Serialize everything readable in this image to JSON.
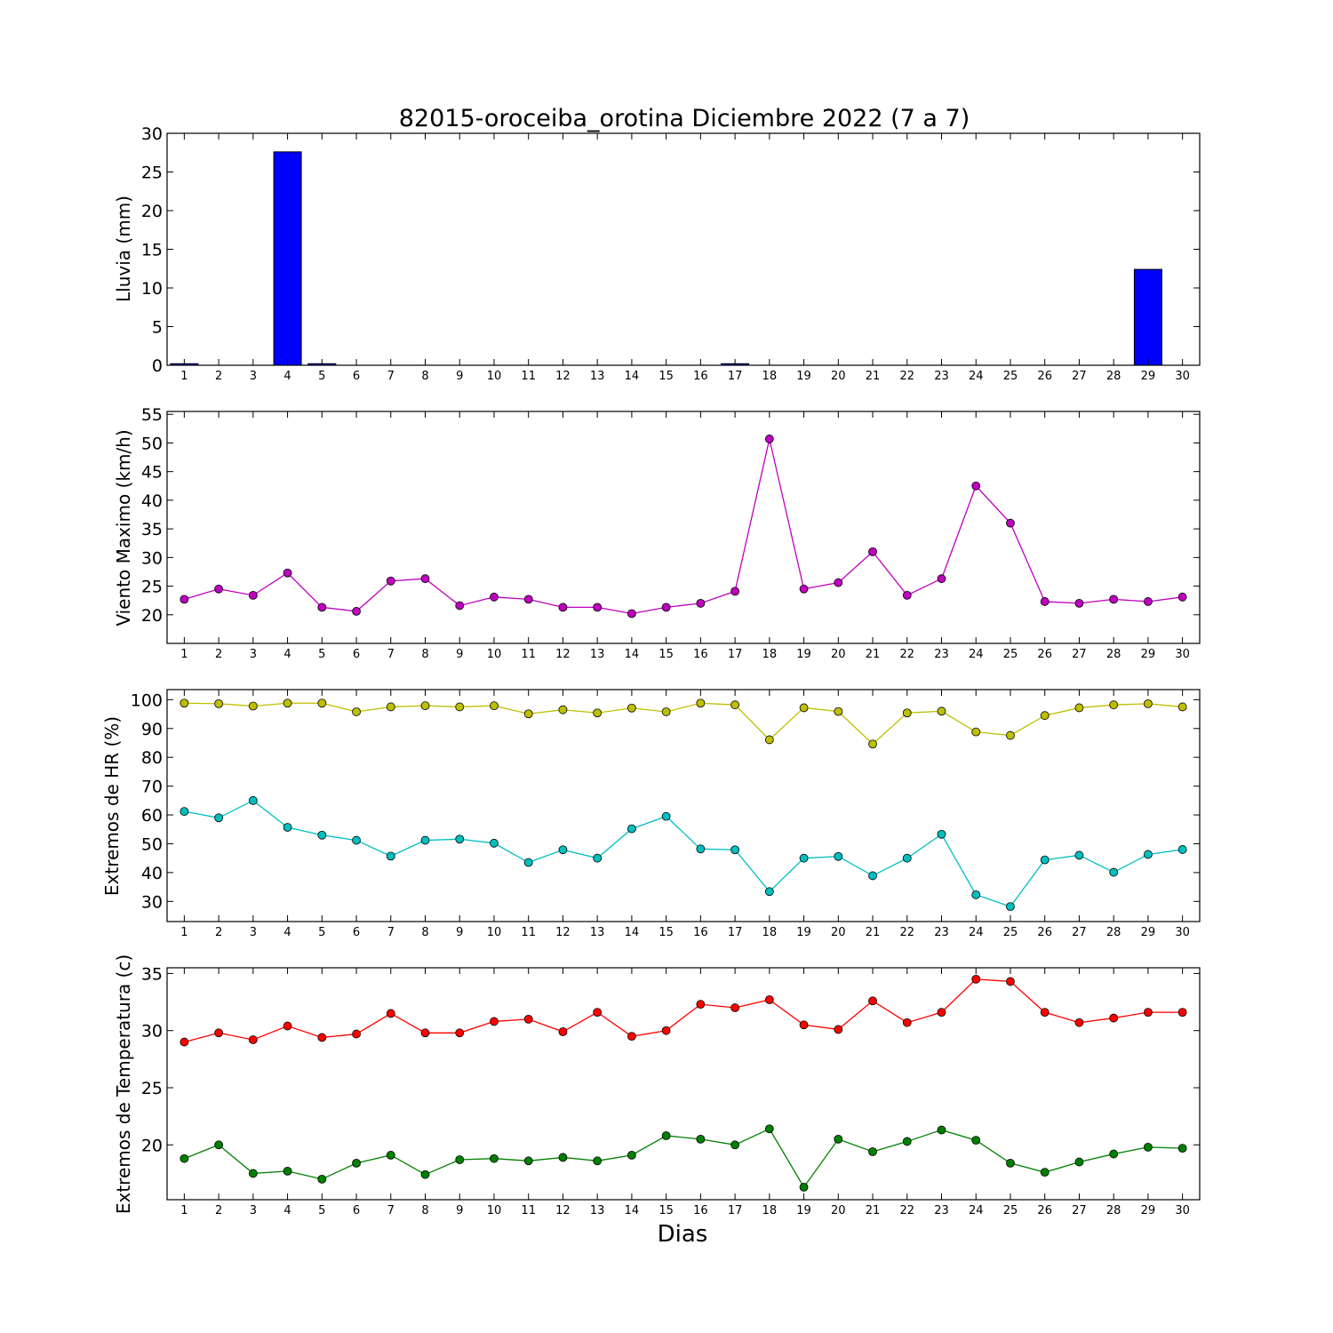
{
  "title": "82015-oroceiba_orotina Diciembre 2022  (7 a 7)",
  "xlabel": "Dias",
  "chart_data": [
    {
      "type": "bar",
      "ylabel": "Lluvia (mm)",
      "ylim": [
        0,
        30
      ],
      "yticks": [
        0,
        5,
        10,
        15,
        20,
        25,
        30
      ],
      "categories": [
        "1",
        "2",
        "3",
        "4",
        "5",
        "6",
        "7",
        "8",
        "9",
        "10",
        "11",
        "12",
        "13",
        "14",
        "15",
        "16",
        "17",
        "18",
        "19",
        "20",
        "21",
        "22",
        "23",
        "24",
        "25",
        "26",
        "27",
        "28",
        "29",
        "30"
      ],
      "series": [
        {
          "color": "#0000ff",
          "values": [
            0.2,
            0,
            0,
            27.6,
            0.2,
            0,
            0,
            0,
            0,
            0,
            0,
            0,
            0,
            0,
            0,
            0,
            0.2,
            0,
            0,
            0,
            0,
            0,
            0,
            0,
            0,
            0,
            0,
            0,
            12.4,
            0
          ]
        }
      ],
      "grid": false
    },
    {
      "type": "line",
      "ylabel": "Viento Maximo (km/h)",
      "ylim": [
        15,
        55.5
      ],
      "yticks": [
        20,
        25,
        30,
        35,
        40,
        45,
        50,
        55
      ],
      "categories": [
        "1",
        "2",
        "3",
        "4",
        "5",
        "6",
        "7",
        "8",
        "9",
        "10",
        "11",
        "12",
        "13",
        "14",
        "15",
        "16",
        "17",
        "18",
        "19",
        "20",
        "21",
        "22",
        "23",
        "24",
        "25",
        "26",
        "27",
        "28",
        "29",
        "30"
      ],
      "series": [
        {
          "color": "#bf00bf",
          "values": [
            22.7,
            24.5,
            23.4,
            27.3,
            21.3,
            20.6,
            25.9,
            26.3,
            21.6,
            23.1,
            22.7,
            21.3,
            21.3,
            20.2,
            21.3,
            22.0,
            24.1,
            50.7,
            24.5,
            25.6,
            31.0,
            23.4,
            26.3,
            42.5,
            36.0,
            22.3,
            22.0,
            22.7,
            22.3,
            23.1
          ]
        }
      ],
      "grid": false
    },
    {
      "type": "line",
      "ylabel": "Extremos de HR (%)",
      "ylim": [
        23,
        103.5
      ],
      "yticks": [
        30,
        40,
        50,
        60,
        70,
        80,
        90,
        100
      ],
      "categories": [
        "1",
        "2",
        "3",
        "4",
        "5",
        "6",
        "7",
        "8",
        "9",
        "10",
        "11",
        "12",
        "13",
        "14",
        "15",
        "16",
        "17",
        "18",
        "19",
        "20",
        "21",
        "22",
        "23",
        "24",
        "25",
        "26",
        "27",
        "28",
        "29",
        "30"
      ],
      "series": [
        {
          "color": "#bfbf00",
          "values": [
            98.8,
            98.6,
            97.8,
            98.8,
            98.8,
            95.8,
            97.5,
            97.9,
            97.5,
            97.9,
            95.1,
            96.5,
            95.4,
            97.1,
            95.8,
            98.8,
            98.2,
            86.1,
            97.2,
            95.9,
            84.6,
            95.4,
            96.0,
            88.8,
            87.6,
            94.5,
            97.2,
            98.2,
            98.6,
            97.5
          ]
        },
        {
          "color": "#00bfbf",
          "values": [
            61.2,
            59.0,
            65.0,
            55.7,
            53.0,
            51.2,
            45.7,
            51.2,
            51.6,
            50.2,
            43.5,
            47.9,
            45.0,
            55.2,
            59.5,
            48.2,
            47.9,
            33.4,
            45.0,
            45.6,
            38.9,
            45.0,
            53.3,
            32.3,
            28.2,
            44.4,
            46.0,
            40.1,
            46.3,
            48.0
          ]
        }
      ],
      "grid": false
    },
    {
      "type": "line",
      "ylabel": "Extremos de Temperatura (c)",
      "ylim": [
        15.2,
        35.5
      ],
      "yticks": [
        20,
        25,
        30,
        35
      ],
      "categories": [
        "1",
        "2",
        "3",
        "4",
        "5",
        "6",
        "7",
        "8",
        "9",
        "10",
        "11",
        "12",
        "13",
        "14",
        "15",
        "16",
        "17",
        "18",
        "19",
        "20",
        "21",
        "22",
        "23",
        "24",
        "25",
        "26",
        "27",
        "28",
        "29",
        "30"
      ],
      "series": [
        {
          "color": "#ff0000",
          "values": [
            29.0,
            29.8,
            29.2,
            30.4,
            29.4,
            29.7,
            31.5,
            29.8,
            29.8,
            30.8,
            31.0,
            29.9,
            31.6,
            29.5,
            30.0,
            32.3,
            32.0,
            32.7,
            30.5,
            30.1,
            32.6,
            30.7,
            31.6,
            34.5,
            34.3,
            31.6,
            30.7,
            31.1,
            31.6,
            31.6
          ]
        },
        {
          "color": "#008000",
          "values": [
            18.8,
            20.0,
            17.5,
            17.7,
            17.0,
            18.4,
            19.1,
            17.4,
            18.7,
            18.8,
            18.6,
            18.9,
            18.6,
            19.1,
            20.8,
            20.5,
            20.0,
            21.4,
            16.3,
            20.5,
            19.4,
            20.3,
            21.3,
            20.4,
            18.4,
            17.6,
            18.5,
            19.2,
            19.8,
            19.7
          ]
        }
      ],
      "grid": false
    }
  ]
}
